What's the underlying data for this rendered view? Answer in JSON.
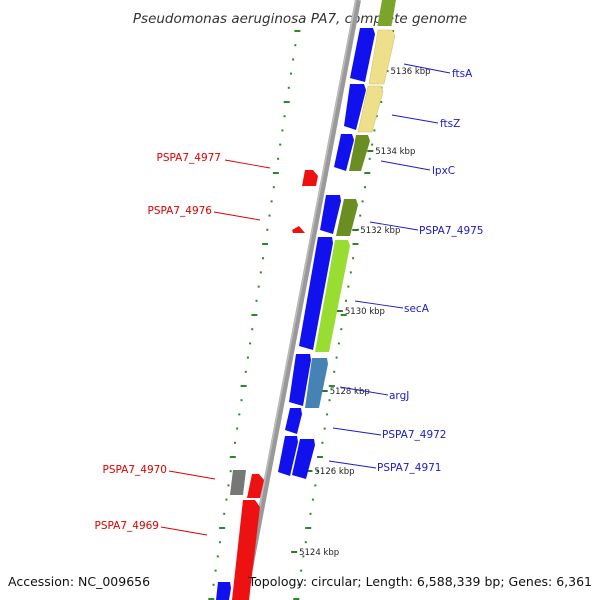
{
  "header": {
    "title": "Pseudomonas aeruginosa PA7, complete genome"
  },
  "footer": {
    "accession": "Accession: NC_009656",
    "topology": "Topology: circular; Length: 6,588,339 bp; Genes: 6,361"
  },
  "colors": {
    "backbone": "#888888",
    "plus_strand": "#1111ee",
    "minus_strand": "#ee1111",
    "ftsA": "#eee08a",
    "ftsZ": "#eee08a",
    "lpxC": "#6b8e23",
    "PSPA7_4975": "#6b8e23",
    "secA": "#99dd33",
    "argJ": "#4682b4",
    "PSPA7_4970": "#777777",
    "tick_major": "#2a7a2a",
    "tick_minor": "#2a9a2a",
    "label_right": "#1a1acc",
    "label_left": "#dd0000"
  },
  "ticks": [
    {
      "kbp": 5136,
      "label": "5136 kbp"
    },
    {
      "kbp": 5134,
      "label": "5134 kbp"
    },
    {
      "kbp": 5132,
      "label": "5132 kbp"
    },
    {
      "kbp": 5130,
      "label": "5130 kbp"
    },
    {
      "kbp": 5128,
      "label": "5128 kbp"
    },
    {
      "kbp": 5126,
      "label": "5126 kbp"
    },
    {
      "kbp": 5124,
      "label": "5124 kbp"
    }
  ],
  "genes_right": [
    {
      "name": "ftsA",
      "label": "ftsA"
    },
    {
      "name": "ftsZ",
      "label": "ftsZ"
    },
    {
      "name": "lpxC",
      "label": "lpxC"
    },
    {
      "name": "PSPA7_4975",
      "label": "PSPA7_4975"
    },
    {
      "name": "secA",
      "label": "secA"
    },
    {
      "name": "argJ",
      "label": "argJ"
    },
    {
      "name": "PSPA7_4972",
      "label": "PSPA7_4972"
    },
    {
      "name": "PSPA7_4971",
      "label": "PSPA7_4971"
    }
  ],
  "genes_left": [
    {
      "name": "PSPA7_4977",
      "label": "PSPA7_4977"
    },
    {
      "name": "PSPA7_4976",
      "label": "PSPA7_4976"
    },
    {
      "name": "PSPA7_4970",
      "label": "PSPA7_4970"
    },
    {
      "name": "PSPA7_4969",
      "label": "PSPA7_4969"
    }
  ]
}
